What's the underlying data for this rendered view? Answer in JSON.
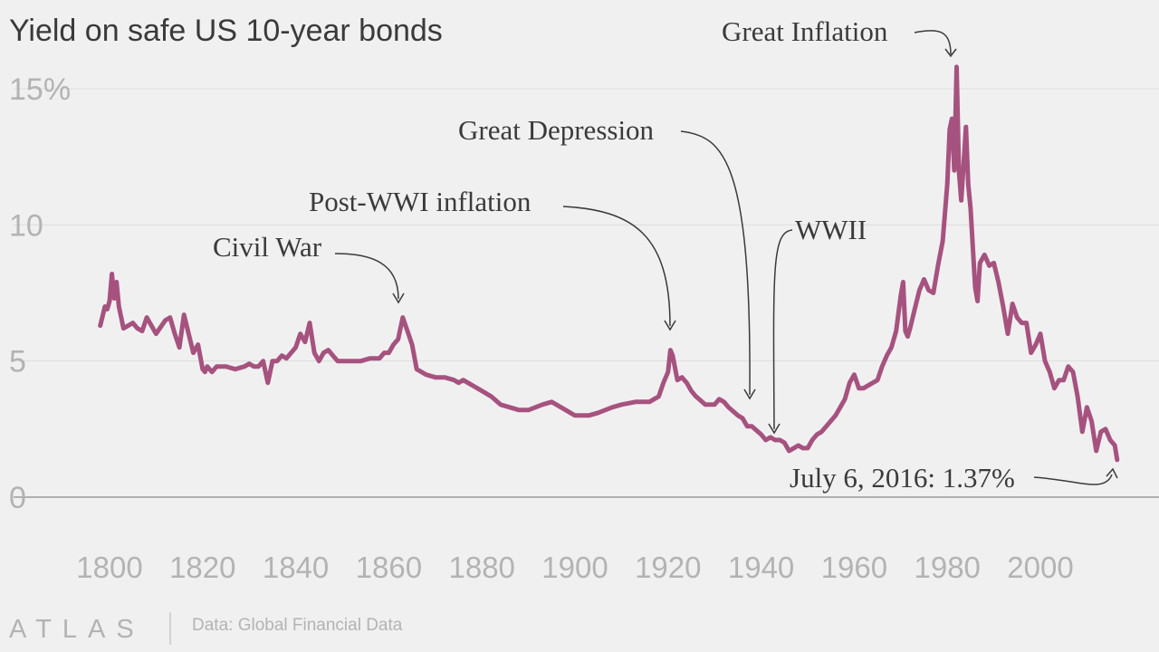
{
  "chart_data": {
    "type": "line",
    "title": "Yield on safe US 10-year bonds",
    "xlabel": "",
    "ylabel": "",
    "xlim": [
      1790,
      2022
    ],
    "ylim": [
      0,
      16
    ],
    "y_ticks": [
      0,
      5,
      10,
      15
    ],
    "y_tick_labels": [
      "0",
      "5",
      "10",
      "15%"
    ],
    "x_ticks": [
      1800,
      1820,
      1840,
      1860,
      1880,
      1900,
      1920,
      1940,
      1960,
      1980,
      2000
    ],
    "x_tick_labels": [
      "1800",
      "1820",
      "1840",
      "1860",
      "1880",
      "1900",
      "1920",
      "1940",
      "1960",
      "1980",
      "2000"
    ],
    "grid": true,
    "color": "#a6527f",
    "series": [
      {
        "x": [
          1798,
          1799,
          1799.5,
          1800,
          1800.5,
          1801,
          1801.5,
          1802,
          1803,
          1804,
          1805,
          1806,
          1807,
          1808,
          1810,
          1812,
          1813,
          1814,
          1815,
          1816,
          1818,
          1819,
          1820,
          1820.5,
          1821,
          1822,
          1823,
          1825,
          1827,
          1829,
          1830,
          1831,
          1832,
          1833,
          1834,
          1835,
          1836,
          1837,
          1838,
          1839,
          1840,
          1841,
          1842,
          1843,
          1844,
          1845,
          1846,
          1847,
          1848,
          1849,
          1850,
          1852,
          1854,
          1856,
          1858,
          1859,
          1860,
          1861,
          1862,
          1863,
          1864,
          1865,
          1866,
          1868,
          1870,
          1872,
          1874,
          1875,
          1876,
          1878,
          1880,
          1882,
          1884,
          1886,
          1888,
          1890,
          1893,
          1895,
          1897,
          1900,
          1903,
          1905,
          1908,
          1910,
          1913,
          1916,
          1918,
          1919,
          1920,
          1920.5,
          1921,
          1922,
          1923,
          1924,
          1925,
          1926,
          1928,
          1930,
          1931,
          1932,
          1933,
          1935,
          1936,
          1937,
          1938,
          1940,
          1941,
          1942,
          1943,
          1944,
          1945,
          1946,
          1947,
          1948,
          1949,
          1950,
          1951,
          1952,
          1953,
          1955,
          1956,
          1957,
          1958,
          1959,
          1960,
          1961,
          1962,
          1963,
          1964,
          1965,
          1966,
          1967,
          1968,
          1969,
          1970,
          1970.5,
          1971,
          1971.5,
          1972,
          1973,
          1974,
          1975,
          1976,
          1977,
          1978,
          1979,
          1980,
          1980.5,
          1981,
          1981.5,
          1982,
          1982.5,
          1983,
          1984,
          1984.5,
          1985,
          1986,
          1986.5,
          1987,
          1988,
          1989,
          1990,
          1991,
          1992,
          1993,
          1994,
          1995,
          1996,
          1997,
          1998,
          1999,
          2000,
          2001,
          2002,
          2003,
          2004,
          2005,
          2006,
          2007,
          2008,
          2009,
          2010,
          2011,
          2012,
          2013,
          2014,
          2015,
          2016,
          2016.5
        ],
        "y": [
          6.3,
          7.0,
          6.9,
          7.2,
          8.2,
          7.3,
          7.9,
          7.0,
          6.2,
          6.3,
          6.4,
          6.2,
          6.1,
          6.6,
          6.0,
          6.5,
          6.6,
          6.0,
          5.5,
          6.7,
          5.3,
          5.6,
          4.7,
          4.6,
          4.8,
          4.6,
          4.8,
          4.8,
          4.7,
          4.8,
          4.9,
          4.8,
          4.8,
          5.0,
          4.2,
          5.0,
          5.0,
          5.2,
          5.1,
          5.3,
          5.5,
          6.0,
          5.7,
          6.4,
          5.3,
          5.0,
          5.3,
          5.4,
          5.2,
          5.0,
          5.0,
          5.0,
          5.0,
          5.1,
          5.1,
          5.3,
          5.3,
          5.6,
          5.8,
          6.6,
          6.1,
          5.6,
          4.7,
          4.5,
          4.4,
          4.4,
          4.3,
          4.2,
          4.3,
          4.1,
          3.9,
          3.7,
          3.4,
          3.3,
          3.2,
          3.2,
          3.4,
          3.5,
          3.3,
          3.0,
          3.0,
          3.1,
          3.3,
          3.4,
          3.5,
          3.5,
          3.7,
          4.2,
          4.6,
          5.4,
          5.2,
          4.3,
          4.4,
          4.2,
          3.9,
          3.7,
          3.4,
          3.4,
          3.6,
          3.5,
          3.3,
          3.0,
          2.9,
          2.6,
          2.6,
          2.3,
          2.1,
          2.2,
          2.1,
          2.1,
          2.0,
          1.7,
          1.8,
          1.9,
          1.8,
          1.8,
          2.1,
          2.3,
          2.4,
          2.8,
          3.0,
          3.3,
          3.6,
          4.2,
          4.5,
          4.0,
          4.0,
          4.1,
          4.2,
          4.3,
          4.8,
          5.2,
          5.5,
          6.1,
          7.4,
          7.9,
          6.1,
          5.9,
          6.2,
          6.9,
          7.6,
          8.0,
          7.6,
          7.5,
          8.5,
          9.4,
          11.5,
          13.5,
          13.9,
          12.0,
          15.8,
          12.0,
          10.9,
          13.6,
          11.5,
          10.6,
          7.7,
          7.2,
          8.6,
          8.9,
          8.5,
          8.6,
          7.9,
          7.0,
          6.0,
          7.1,
          6.6,
          6.4,
          6.4,
          5.3,
          5.6,
          6.0,
          5.0,
          4.6,
          4.0,
          4.3,
          4.3,
          4.8,
          4.6,
          3.7,
          2.4,
          3.3,
          2.8,
          1.7,
          2.4,
          2.5,
          2.1,
          1.9,
          1.37
        ]
      }
    ],
    "annotations": [
      {
        "text": "Great Inflation",
        "x": 1981.5,
        "y": 16
      },
      {
        "text": "Great Depression",
        "x": 1937,
        "y": 3.5
      },
      {
        "text": "Post-WWI inflation",
        "x": 1920.5,
        "y": 6.1
      },
      {
        "text": "WWII",
        "x": 1944,
        "y": 2.3
      },
      {
        "text": "Civil War",
        "x": 1862,
        "y": 7.2
      },
      {
        "text": "July 6, 2016: 1.37%",
        "x": 2016.5,
        "y": 1.37
      }
    ]
  },
  "footer": {
    "brand": "ATLAS",
    "source": "Data: Global Financial Data"
  }
}
